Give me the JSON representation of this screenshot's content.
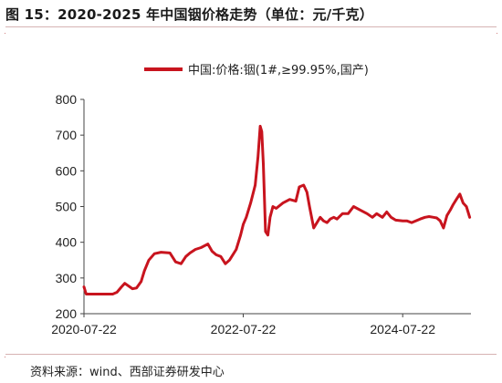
{
  "figure": {
    "title": "图 15：2020-2025 年中国铟价格走势（单位：元/千克）",
    "source": "资料来源：wind、西部证券研发中心"
  },
  "colors": {
    "series": "#c8141e",
    "axis": "#444444",
    "rule": "#d6b3b3"
  },
  "chart_data": {
    "type": "line",
    "title": "",
    "xlabel": "",
    "ylabel": "",
    "ylim": [
      200,
      800
    ],
    "yticks": [
      200,
      300,
      400,
      500,
      600,
      700,
      800
    ],
    "xticks": [
      "2020-07-22",
      "2022-07-22",
      "2024-07-22"
    ],
    "xrange": [
      "2020-07-22",
      "2025-05-31"
    ],
    "grid": false,
    "legend": "top-center",
    "series": [
      {
        "name": "中国:价格:铟(1#,≥99.95%,国产)",
        "x": [
          "2020-07-22",
          "2020-08-01",
          "2020-10-01",
          "2020-12-01",
          "2020-12-20",
          "2021-01-10",
          "2021-01-25",
          "2021-03-01",
          "2021-03-20",
          "2021-04-10",
          "2021-04-25",
          "2021-05-15",
          "2021-06-10",
          "2021-07-10",
          "2021-08-20",
          "2021-09-15",
          "2021-10-10",
          "2021-11-01",
          "2021-11-20",
          "2021-12-15",
          "2022-01-10",
          "2022-02-10",
          "2022-03-01",
          "2022-03-20",
          "2022-04-10",
          "2022-05-01",
          "2022-05-20",
          "2022-06-20",
          "2022-07-10",
          "2022-07-22",
          "2022-08-05",
          "2022-08-25",
          "2022-09-15",
          "2022-09-28",
          "2022-10-08",
          "2022-10-15",
          "2022-10-22",
          "2022-11-01",
          "2022-11-12",
          "2022-11-22",
          "2022-12-05",
          "2022-12-20",
          "2023-01-20",
          "2023-02-20",
          "2023-03-20",
          "2023-04-05",
          "2023-04-25",
          "2023-05-10",
          "2023-05-22",
          "2023-06-10",
          "2023-07-10",
          "2023-07-25",
          "2023-08-10",
          "2023-08-25",
          "2023-09-10",
          "2023-09-25",
          "2023-10-20",
          "2023-11-15",
          "2023-12-10",
          "2024-01-10",
          "2024-02-10",
          "2024-03-05",
          "2024-03-25",
          "2024-04-20",
          "2024-05-10",
          "2024-05-30",
          "2024-06-20",
          "2024-07-22",
          "2024-08-10",
          "2024-09-01",
          "2024-09-20",
          "2024-10-10",
          "2024-11-01",
          "2024-11-20",
          "2024-12-10",
          "2024-12-25",
          "2025-01-10",
          "2025-01-25",
          "2025-02-10",
          "2025-02-25",
          "2025-03-10",
          "2025-03-25",
          "2025-04-10",
          "2025-04-25",
          "2025-05-10",
          "2025-05-25"
        ],
        "values": [
          275,
          255,
          255,
          255,
          260,
          275,
          285,
          270,
          272,
          290,
          320,
          350,
          368,
          372,
          370,
          345,
          340,
          360,
          370,
          380,
          385,
          395,
          375,
          365,
          360,
          340,
          350,
          380,
          420,
          450,
          470,
          510,
          560,
          640,
          725,
          710,
          620,
          430,
          420,
          470,
          500,
          495,
          510,
          520,
          515,
          555,
          560,
          540,
          500,
          440,
          470,
          460,
          455,
          465,
          470,
          465,
          480,
          480,
          500,
          490,
          480,
          470,
          480,
          470,
          485,
          470,
          462,
          460,
          460,
          455,
          460,
          465,
          470,
          472,
          470,
          468,
          460,
          440,
          475,
          490,
          505,
          520,
          535,
          510,
          500,
          470
        ]
      }
    ]
  }
}
